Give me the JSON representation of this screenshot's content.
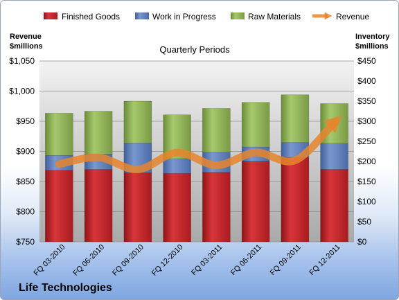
{
  "company": "Life Technologies",
  "colors": {
    "finished_goods": "#c8262b",
    "work_in_progress": "#5f7fba",
    "raw_materials": "#8fb356",
    "revenue": "#e6852d"
  },
  "chart_data": {
    "type": "bar",
    "stacked": true,
    "title": "Quarterly Periods",
    "y_left_label": [
      "Revenue",
      "$millions"
    ],
    "y_right_label": [
      "Inventory",
      "$millions"
    ],
    "categories": [
      "FQ 03-2010",
      "FQ 06-2010",
      "FQ 09-2010",
      "FQ 12-2010",
      "FQ 03-2011",
      "FQ 06-2011",
      "FQ 09-2011",
      "FQ 12-2011"
    ],
    "series": [
      {
        "name": "Finished Goods",
        "axis": "right",
        "values": [
          178,
          180,
          172,
          170,
          173,
          200,
          210,
          180
        ]
      },
      {
        "name": "Work in Progress",
        "axis": "right",
        "values": [
          37,
          38,
          74,
          37,
          50,
          36,
          37,
          64
        ]
      },
      {
        "name": "Raw Materials",
        "axis": "right",
        "values": [
          105,
          107,
          104,
          109,
          109,
          111,
          119,
          100
        ]
      },
      {
        "name": "Revenue",
        "type": "line",
        "axis": "left",
        "values": [
          879,
          890,
          870,
          898,
          877,
          898,
          885,
          948
        ]
      }
    ],
    "y_left": {
      "min": 750,
      "max": 1050,
      "ticks": [
        "$750",
        "$800",
        "$850",
        "$900",
        "$950",
        "$1,000",
        "$1,050"
      ]
    },
    "y_right": {
      "min": 0,
      "max": 450,
      "ticks": [
        "$0",
        "$50",
        "$100",
        "$150",
        "$200",
        "$250",
        "$300",
        "$350",
        "$400",
        "$450"
      ]
    },
    "legend_position": "top",
    "grid": true
  }
}
